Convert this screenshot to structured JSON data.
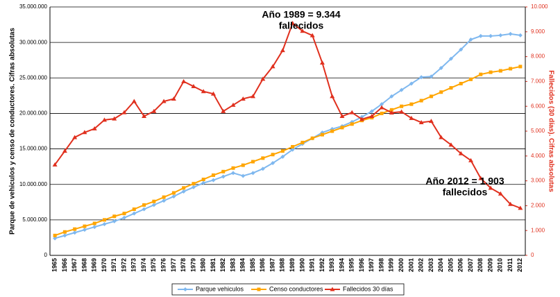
{
  "chart_data": {
    "type": "line",
    "categories": [
      "1965",
      "1966",
      "1967",
      "1968",
      "1969",
      "1970",
      "1971",
      "1972",
      "1973",
      "1974",
      "1975",
      "1976",
      "1977",
      "1978",
      "1979",
      "1980",
      "1981",
      "1982",
      "1983",
      "1984",
      "1985",
      "1986",
      "1987",
      "1988",
      "1989",
      "1990",
      "1991",
      "1992",
      "1993",
      "1994",
      "1995",
      "1996",
      "1997",
      "1998",
      "1999",
      "2000",
      "2001",
      "2002",
      "2003",
      "2004",
      "2005",
      "2006",
      "2007",
      "2008",
      "2009",
      "2010",
      "2011",
      "2012"
    ],
    "series": [
      {
        "name": "Parque vehiculos",
        "color": "#7fb8ef",
        "marker": "diamond",
        "values": [
          2400000,
          2800000,
          3200000,
          3600000,
          4000000,
          4400000,
          4800000,
          5300000,
          5900000,
          6500000,
          7100000,
          7700000,
          8300000,
          9000000,
          9600000,
          10200000,
          10600000,
          11100000,
          11600000,
          11200000,
          11600000,
          12200000,
          13000000,
          13900000,
          14900000,
          15700000,
          16500000,
          17300000,
          17800000,
          18200000,
          18800000,
          19500000,
          20300000,
          21300000,
          22400000,
          23300000,
          24200000,
          25100000,
          25200000,
          26400000,
          27700000,
          29000000,
          30400000,
          30900000,
          30900000,
          31000000,
          31200000,
          31000000
        ]
      },
      {
        "name": "Censo conductores",
        "color": "#ffa500",
        "marker": "square",
        "values": [
          2800000,
          3300000,
          3700000,
          4100000,
          4500000,
          5000000,
          5500000,
          5900000,
          6500000,
          7100000,
          7600000,
          8200000,
          8800000,
          9500000,
          10100000,
          10700000,
          11300000,
          11800000,
          12300000,
          12700000,
          13200000,
          13700000,
          14200000,
          14700000,
          15300000,
          15900000,
          16500000,
          17000000,
          17500000,
          18000000,
          18500000,
          19000000,
          19400000,
          20000000,
          20500000,
          21000000,
          21300000,
          21800000,
          22400000,
          23000000,
          23600000,
          24200000,
          24800000,
          25500000,
          25800000,
          26000000,
          26300000,
          26600000
        ]
      },
      {
        "name": "Fallecidos 30 días",
        "color": "#e0301e",
        "marker": "triangle",
        "axis": "y2",
        "values": [
          3650,
          4200,
          4750,
          4950,
          5100,
          5450,
          5500,
          5750,
          6200,
          5600,
          5800,
          6200,
          6300,
          7000,
          6800,
          6600,
          6500,
          5800,
          6050,
          6300,
          6400,
          7100,
          7600,
          8250,
          9344,
          9030,
          8850,
          7750,
          6400,
          5600,
          5750,
          5480,
          5600,
          5950,
          5740,
          5780,
          5520,
          5350,
          5400,
          4750,
          4450,
          4100,
          3820,
          3100,
          2710,
          2480,
          2060,
          1903
        ]
      }
    ],
    "ylabel": "Parque de vehiculos y censo de conductores. Cifras absolutas",
    "y2label": "Fallecidos (30 días). Cifras absolutas",
    "ylim": [
      0,
      35000000
    ],
    "yticks": [
      0,
      {
        "value": 5000000,
        "label": "5.000.000"
      },
      {
        "value": 10000000,
        "label": "10.000.000"
      },
      {
        "value": 15000000,
        "label": "15.000.000"
      },
      {
        "value": 20000000,
        "label": "20.000.000"
      },
      {
        "value": 25000000,
        "label": "25.000.000"
      },
      {
        "value": 30000000,
        "label": "30.000.000"
      },
      {
        "value": 35000000,
        "label": "35.000.000"
      }
    ],
    "y2lim": [
      0,
      10000
    ],
    "y2ticks": [
      0,
      {
        "value": 1000,
        "label": "1.000"
      },
      {
        "value": 2000,
        "label": "2.000"
      },
      {
        "value": 3000,
        "label": "3.000"
      },
      {
        "value": 4000,
        "label": "4.000"
      },
      {
        "value": 5000,
        "label": "5.000"
      },
      {
        "value": 6000,
        "label": "6.000"
      },
      {
        "value": 7000,
        "label": "7.000"
      },
      {
        "value": 8000,
        "label": "8.000"
      },
      {
        "value": 9000,
        "label": "9.000"
      },
      {
        "value": 10000,
        "label": "10.000"
      }
    ],
    "grid": true,
    "legend": "bottom",
    "annotations": [
      {
        "lines": [
          "Año 1989 = 9.344",
          "fallecidos"
        ]
      },
      {
        "lines": [
          "Año 2012 = 1.903",
          "fallecidos"
        ]
      }
    ]
  }
}
